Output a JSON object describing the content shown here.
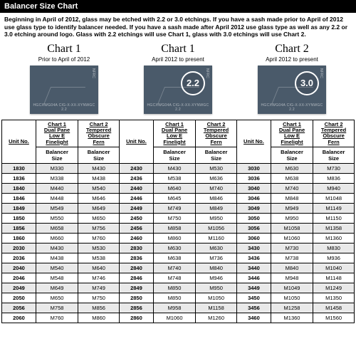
{
  "header": {
    "title": "Balancer Size Chart"
  },
  "intro": "Beginning in April of 2012, glass may be etched with 2.2 or 3.0 etchings. If you have a sash made prior to April of 2012 use glass type to identify balancer needed. If you have a sash made after April 2012 use glass type as well as any 2.2 or 3.0 etching around logo. Glass with 2.2 etchings will use Chart 1, glass with 3.0 etchings will use Chart 2.",
  "tiles": [
    {
      "title": "Chart 1",
      "sub": "Prior to April of 2012",
      "badge": "",
      "glass_color": "#4a5a6a"
    },
    {
      "title": "Chart 1",
      "sub": "April 2012 to present",
      "badge": "2.2",
      "glass_color": "#4a5a6a"
    },
    {
      "title": "Chart 2",
      "sub": "April 2012 to present",
      "badge": "3.0",
      "glass_color": "#4a5a6a"
    }
  ],
  "etch_text": "HGCXWG04A CIG-X-XX-XYNWGC 2.2",
  "table": {
    "group_headers": {
      "c1_line1": "Chart 1",
      "c1_line2": "Dual Pane",
      "c1_line3": "Low E",
      "c1_line4": "Finelight",
      "c2_line1": "Chart 2",
      "c2_line2": "Tempered",
      "c2_line3": "Obscure",
      "c2_line4": "Fern",
      "unit": "Unit No.",
      "balancer": "Balancer",
      "size": "Size"
    },
    "rowsA": [
      [
        "1830",
        "M330",
        "M430"
      ],
      [
        "1836",
        "M338",
        "M438"
      ],
      [
        "1840",
        "M440",
        "M540"
      ],
      [
        "1846",
        "M448",
        "M646"
      ],
      [
        "1849",
        "M549",
        "M649"
      ],
      [
        "1850",
        "M550",
        "M650"
      ],
      [
        "1856",
        "M658",
        "M756"
      ],
      [
        "1860",
        "M660",
        "M760"
      ],
      [
        "2030",
        "M430",
        "M530"
      ],
      [
        "2036",
        "M438",
        "M538"
      ],
      [
        "2040",
        "M540",
        "M640"
      ],
      [
        "2046",
        "M548",
        "M746"
      ],
      [
        "2049",
        "M649",
        "M749"
      ],
      [
        "2050",
        "M650",
        "M750"
      ],
      [
        "2056",
        "M758",
        "M856"
      ],
      [
        "2060",
        "M760",
        "M860"
      ]
    ],
    "rowsB": [
      [
        "2430",
        "M430",
        "M530"
      ],
      [
        "2436",
        "M538",
        "M636"
      ],
      [
        "2440",
        "M640",
        "M740"
      ],
      [
        "2446",
        "M645",
        "M846"
      ],
      [
        "2449",
        "M749",
        "M849"
      ],
      [
        "2450",
        "M750",
        "M950"
      ],
      [
        "2456",
        "M858",
        "M1056"
      ],
      [
        "2460",
        "M860",
        "M1160"
      ],
      [
        "2830",
        "M630",
        "M630"
      ],
      [
        "2836",
        "M638",
        "M736"
      ],
      [
        "2840",
        "M740",
        "M840"
      ],
      [
        "2846",
        "M748",
        "M946"
      ],
      [
        "2849",
        "M850",
        "M950"
      ],
      [
        "2850",
        "M850",
        "M1050"
      ],
      [
        "2856",
        "M958",
        "M1158"
      ],
      [
        "2860",
        "M1060",
        "M1260"
      ]
    ],
    "rowsC": [
      [
        "3030",
        "M630",
        "M730"
      ],
      [
        "3036",
        "M638",
        "M836"
      ],
      [
        "3040",
        "M740",
        "M940"
      ],
      [
        "3046",
        "M848",
        "M1048"
      ],
      [
        "3049",
        "M949",
        "M1149"
      ],
      [
        "3050",
        "M950",
        "M1150"
      ],
      [
        "3056",
        "M1058",
        "M1358"
      ],
      [
        "3060",
        "M1060",
        "M1360"
      ],
      [
        "3430",
        "M730",
        "M830"
      ],
      [
        "3436",
        "M738",
        "M936"
      ],
      [
        "3440",
        "M840",
        "M1040"
      ],
      [
        "3446",
        "M948",
        "M1148"
      ],
      [
        "3449",
        "M1049",
        "M1249"
      ],
      [
        "3450",
        "M1050",
        "M1350"
      ],
      [
        "3456",
        "M1258",
        "M1458"
      ],
      [
        "3460",
        "M1360",
        "M1560"
      ]
    ]
  }
}
